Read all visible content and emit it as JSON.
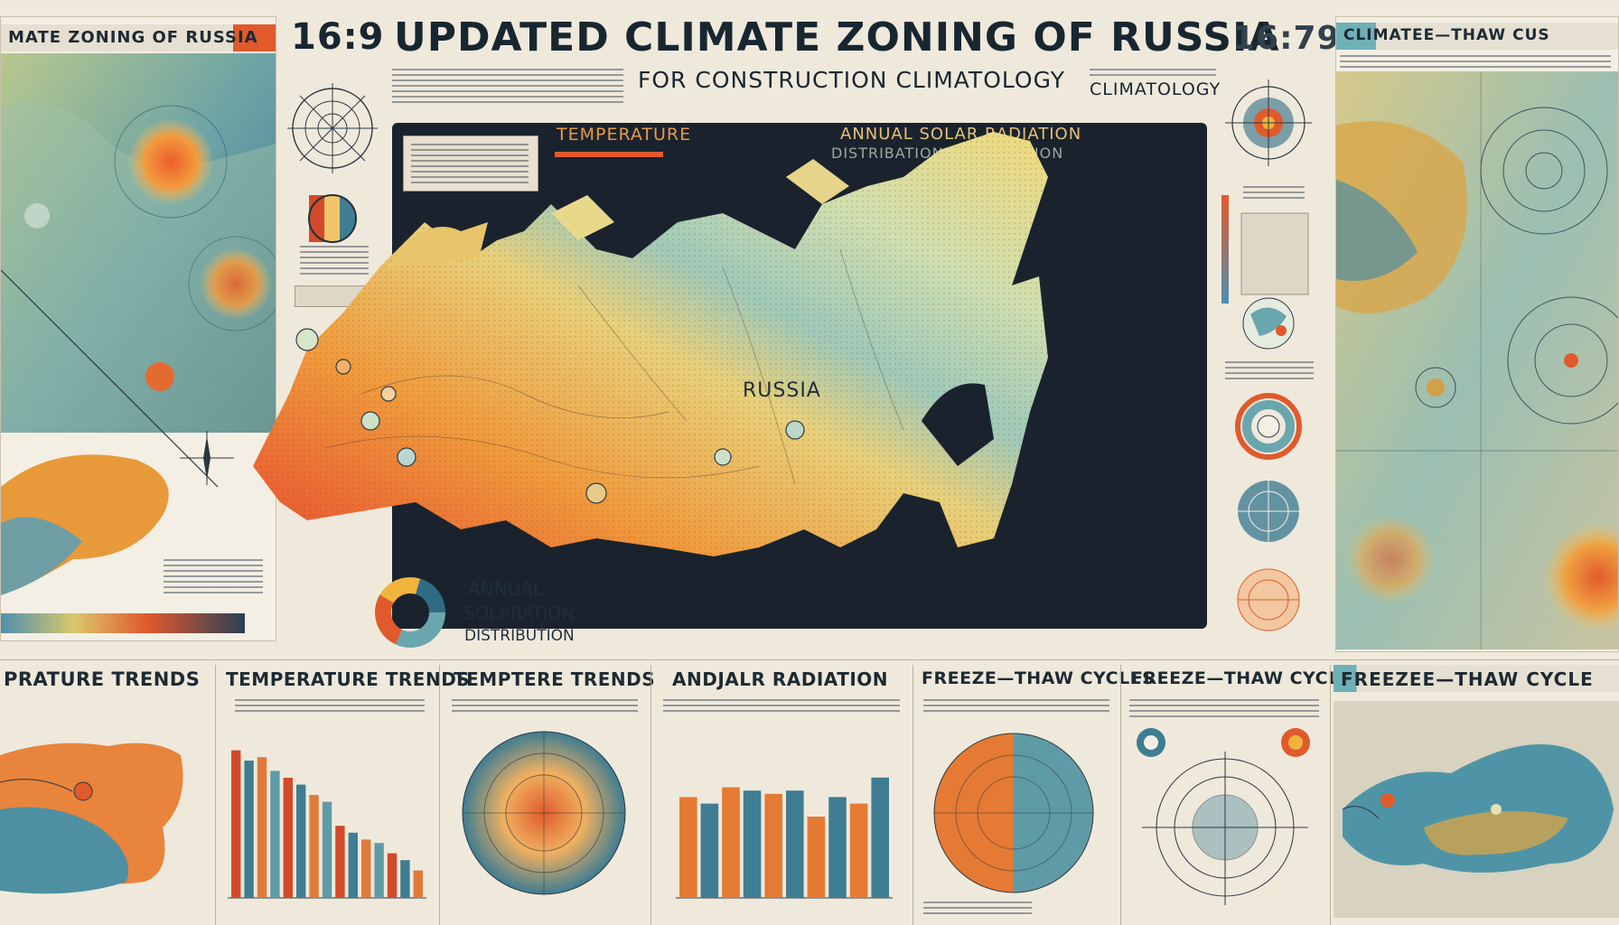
{
  "header": {
    "title": "UPDATED CLIMATE ZONING OF RUSSIA",
    "subtitle": "FOR CONSTRUCTION CLIMATOLOGY",
    "ratio_left": "16:9",
    "ratio_right": "16:79",
    "climatology_tag": "CLIMATOLOGY"
  },
  "left_panel": {
    "band": "MATE ZONING OF RUSSIA"
  },
  "right_panel": {
    "band": "CLIMATEE—THAW CUS"
  },
  "main_map": {
    "label_temperature": "TEMPERATURE",
    "label_solar_1": "ANNUAL SOLAR RADIATION",
    "label_solar_2": "DISTRIBATION DISTRIBUTION",
    "map_label": "RUSSIA",
    "legend_line1": "ANNUAL",
    "legend_line2": "SOLARATION",
    "legend_line3": "DISTRIBUTION"
  },
  "bottom_panels": [
    {
      "title": "PRATURE TRENDS"
    },
    {
      "title": "TEMPERATURE TRENDS"
    },
    {
      "title": "TEMPTERE TRENDS"
    },
    {
      "title": "ANDJALR RADIATION"
    },
    {
      "title": "FREEZE—THAW CYCLES"
    },
    {
      "title": "FREEZE—THAW CYCLES"
    },
    {
      "title": "FREEZEE—THAW CYCLE"
    }
  ],
  "bar_chart_1": {
    "values": [
      86,
      80,
      82,
      74,
      70,
      66,
      60,
      56,
      42,
      38,
      34,
      32,
      26,
      22,
      16
    ]
  },
  "bar_chart_2": {
    "values": [
      62,
      58,
      68,
      66,
      64,
      66,
      50,
      62,
      58,
      74
    ]
  },
  "colors": {
    "background": "#efe9dc",
    "warm": "#e1572f",
    "mid": "#f0b43c",
    "cool": "#6fa7ae",
    "dark": "#19222c"
  }
}
